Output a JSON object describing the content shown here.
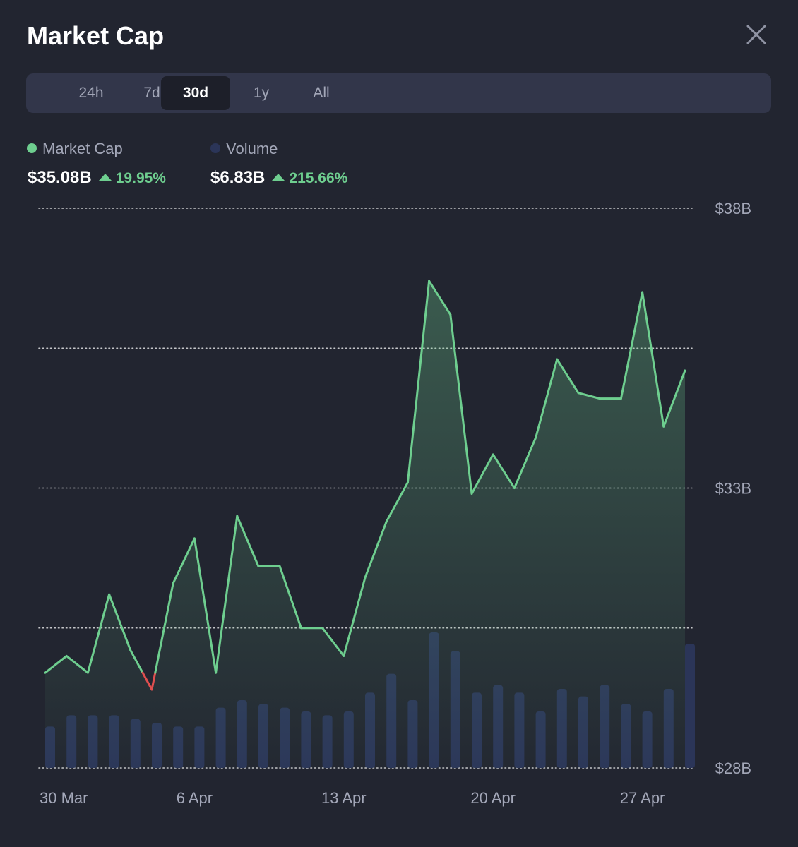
{
  "title": "Market Cap",
  "close_icon": "close-icon",
  "tabs": [
    {
      "label": "24h",
      "active": false
    },
    {
      "label": "7d",
      "active": false
    },
    {
      "label": "30d",
      "active": true
    },
    {
      "label": "1y",
      "active": false
    },
    {
      "label": "All",
      "active": false
    }
  ],
  "legend": {
    "market_cap": {
      "label": "Market Cap",
      "value": "$35.08B",
      "change": "19.95%",
      "color": "#6ece8f"
    },
    "volume": {
      "label": "Volume",
      "value": "$6.83B",
      "change": "215.66%",
      "color": "#2b3558"
    }
  },
  "colors": {
    "background": "#222530",
    "line": "#6ece8f",
    "line_down": "#e04f4f",
    "volume_bar": "#2b3558",
    "axis_text": "#a3a7b8",
    "grid": "#ffffff"
  },
  "chart_data": {
    "type": "line",
    "x": [
      "30 Mar",
      "31 Mar",
      "1 Apr",
      "2 Apr",
      "3 Apr",
      "4 Apr",
      "5 Apr",
      "6 Apr",
      "7 Apr",
      "8 Apr",
      "9 Apr",
      "10 Apr",
      "11 Apr",
      "12 Apr",
      "13 Apr",
      "14 Apr",
      "15 Apr",
      "16 Apr",
      "17 Apr",
      "18 Apr",
      "19 Apr",
      "20 Apr",
      "21 Apr",
      "22 Apr",
      "23 Apr",
      "24 Apr",
      "25 Apr",
      "26 Apr",
      "27 Apr",
      "28 Apr",
      "29 Apr"
    ],
    "x_tick_labels": [
      "30 Mar",
      "6 Apr",
      "13 Apr",
      "20 Apr",
      "27 Apr"
    ],
    "y_tick_labels": [
      "$38B",
      "$33B",
      "$28B"
    ],
    "ylim": [
      28,
      38
    ],
    "y_unit": "B USD",
    "grid": true,
    "series": [
      {
        "name": "Market Cap",
        "values": [
          29.7,
          30.0,
          29.7,
          31.1,
          30.1,
          29.4,
          31.3,
          32.1,
          29.7,
          32.5,
          31.6,
          31.6,
          30.5,
          30.5,
          30.0,
          31.4,
          32.4,
          33.1,
          36.7,
          36.1,
          32.9,
          33.6,
          33.0,
          33.9,
          35.3,
          34.7,
          34.6,
          34.6,
          36.5,
          34.1,
          35.1
        ]
      },
      {
        "name": "Volume",
        "values": [
          1.1,
          1.4,
          1.4,
          1.4,
          1.3,
          1.2,
          1.1,
          1.1,
          1.6,
          1.8,
          1.7,
          1.6,
          1.5,
          1.4,
          1.5,
          2.0,
          2.5,
          1.8,
          3.6,
          3.1,
          2.0,
          2.2,
          2.0,
          1.5,
          2.1,
          1.9,
          2.2,
          1.7,
          1.5,
          2.1,
          3.3
        ]
      }
    ]
  }
}
